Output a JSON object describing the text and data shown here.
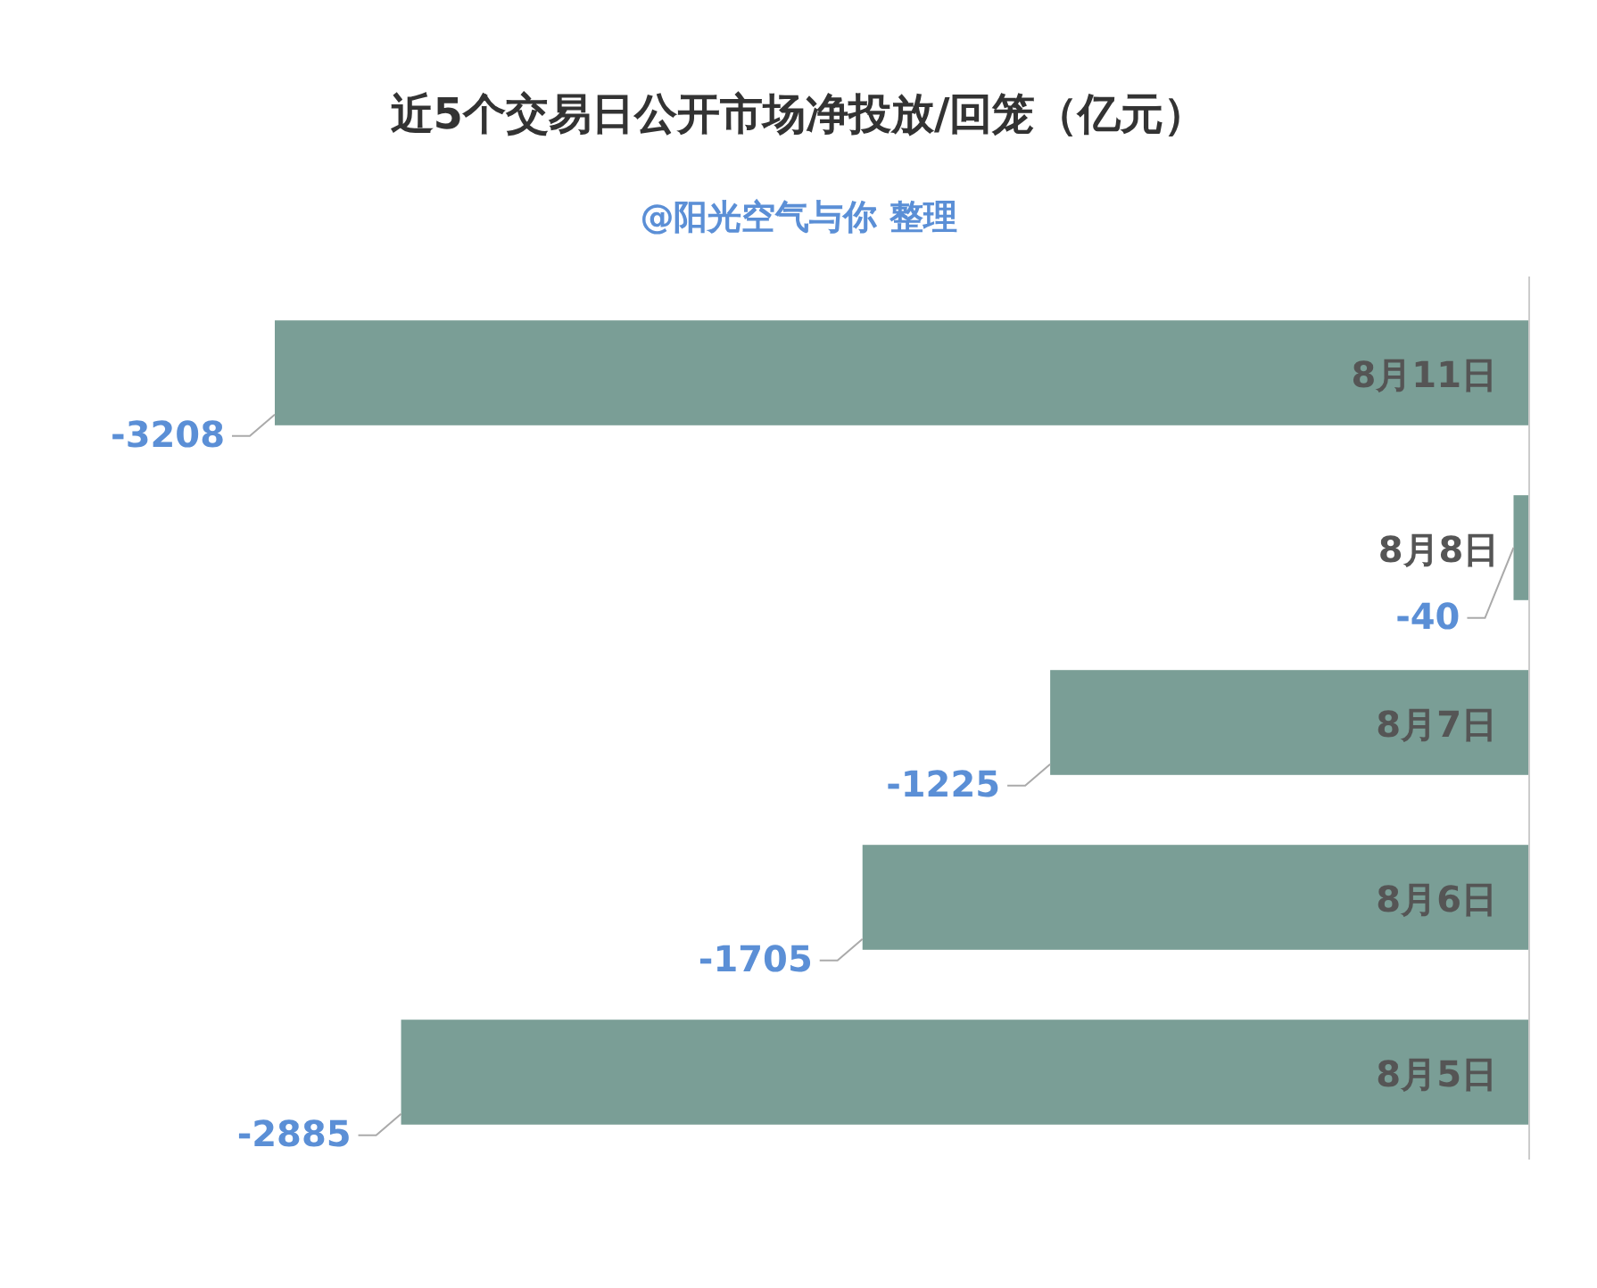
{
  "chart_data": {
    "type": "bar",
    "orientation": "horizontal",
    "title": "近5个交易日公开市场净投放/回笼（亿元）",
    "subtitle": "@阳光空气与你 整理",
    "categories": [
      "8月11日",
      "8月8日",
      "8月7日",
      "8月6日",
      "8月5日"
    ],
    "values": [
      -3208,
      -40,
      -1225,
      -1705,
      -2885
    ],
    "color": "#7a9e96",
    "data_labels": true
  }
}
